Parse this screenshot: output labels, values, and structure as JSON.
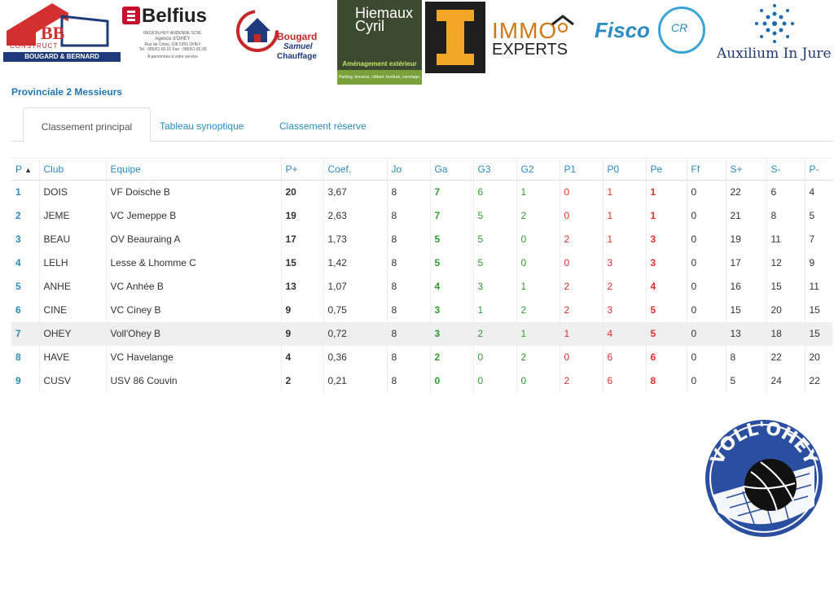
{
  "sponsors": {
    "bb": {
      "line1": "CONSTRUCT",
      "line2": "BOUGARD & BERNARD"
    },
    "belfius": {
      "name": "Belfius",
      "line1": "REGION HUY ANDENNE SCRL",
      "line2": "Agence d'OHEY",
      "line3": "Rue de Ciney, 108 5350 OHEY",
      "line4": "Tel : 085/61.60.01    Fax : 085/61.60.00",
      "line5": "A personnes à votre service"
    },
    "bougard": {
      "line1": "Bougard",
      "line2": "Samuel",
      "line3": "Chauffage"
    },
    "hiemaux": {
      "name_1": "Hiemaux",
      "name_2": "Cyril",
      "tagline": "Aménagement extérieur",
      "bar": "Parking, terrasse, clôture, bordure, carrelage, terrassement..."
    },
    "immo": {
      "line1": "IMMO",
      "line2": "EXPERTS"
    },
    "fisco": {
      "name": "Fisco",
      "initials": "CR"
    },
    "auxilium": {
      "name": "Auxilium In Jure"
    }
  },
  "division_title": "Provinciale 2 Messieurs",
  "tabs": [
    {
      "label": "Classement principal",
      "active": true
    },
    {
      "label": "Tableau synoptique",
      "active": false
    },
    {
      "label": "Classement réserve",
      "active": false
    }
  ],
  "table": {
    "sort_indicator": "▲",
    "headers": [
      "P",
      "Club",
      "Equipe",
      "P+",
      "Coef.",
      "Jo",
      "Ga",
      "G3",
      "G2",
      "P1",
      "P0",
      "Pe",
      "Ff",
      "S+",
      "S-",
      "P-"
    ],
    "rows": [
      [
        "1",
        "DOIS",
        "VF Doische B",
        "20",
        "3,67",
        "8",
        "7",
        "6",
        "1",
        "0",
        "1",
        "1",
        "0",
        "22",
        "6",
        "4"
      ],
      [
        "2",
        "JEME",
        "VC Jemeppe B",
        "19",
        "2,63",
        "8",
        "7",
        "5",
        "2",
        "0",
        "1",
        "1",
        "0",
        "21",
        "8",
        "5"
      ],
      [
        "3",
        "BEAU",
        "OV Beauraing A",
        "17",
        "1,73",
        "8",
        "5",
        "5",
        "0",
        "2",
        "1",
        "3",
        "0",
        "19",
        "11",
        "7"
      ],
      [
        "4",
        "LELH",
        "Lesse & Lhomme C",
        "15",
        "1,42",
        "8",
        "5",
        "5",
        "0",
        "0",
        "3",
        "3",
        "0",
        "17",
        "12",
        "9"
      ],
      [
        "5",
        "ANHE",
        "VC Anhée B",
        "13",
        "1,07",
        "8",
        "4",
        "3",
        "1",
        "2",
        "2",
        "4",
        "0",
        "16",
        "15",
        "11"
      ],
      [
        "6",
        "CINE",
        "VC Ciney B",
        "9",
        "0,75",
        "8",
        "3",
        "1",
        "2",
        "2",
        "3",
        "5",
        "0",
        "15",
        "20",
        "15"
      ],
      [
        "7",
        "OHEY",
        "Voll'Ohey B",
        "9",
        "0,72",
        "8",
        "3",
        "2",
        "1",
        "1",
        "4",
        "5",
        "0",
        "13",
        "18",
        "15"
      ],
      [
        "8",
        "HAVE",
        "VC Havelange",
        "4",
        "0,36",
        "8",
        "2",
        "0",
        "2",
        "0",
        "6",
        "6",
        "0",
        "8",
        "22",
        "20"
      ],
      [
        "9",
        "CUSV",
        "USV 86 Couvin",
        "2",
        "0,21",
        "8",
        "0",
        "0",
        "0",
        "2",
        "6",
        "8",
        "0",
        "5",
        "24",
        "22"
      ]
    ],
    "highlight_row": 6
  },
  "club_logo": {
    "text": "VOLL'OHEY",
    "colors": {
      "ring": "#2a4fa0",
      "ball": "#111111"
    }
  },
  "colors": {
    "link": "#2a8cc4",
    "win": "#2e9e2e",
    "loss": "#e03030"
  }
}
